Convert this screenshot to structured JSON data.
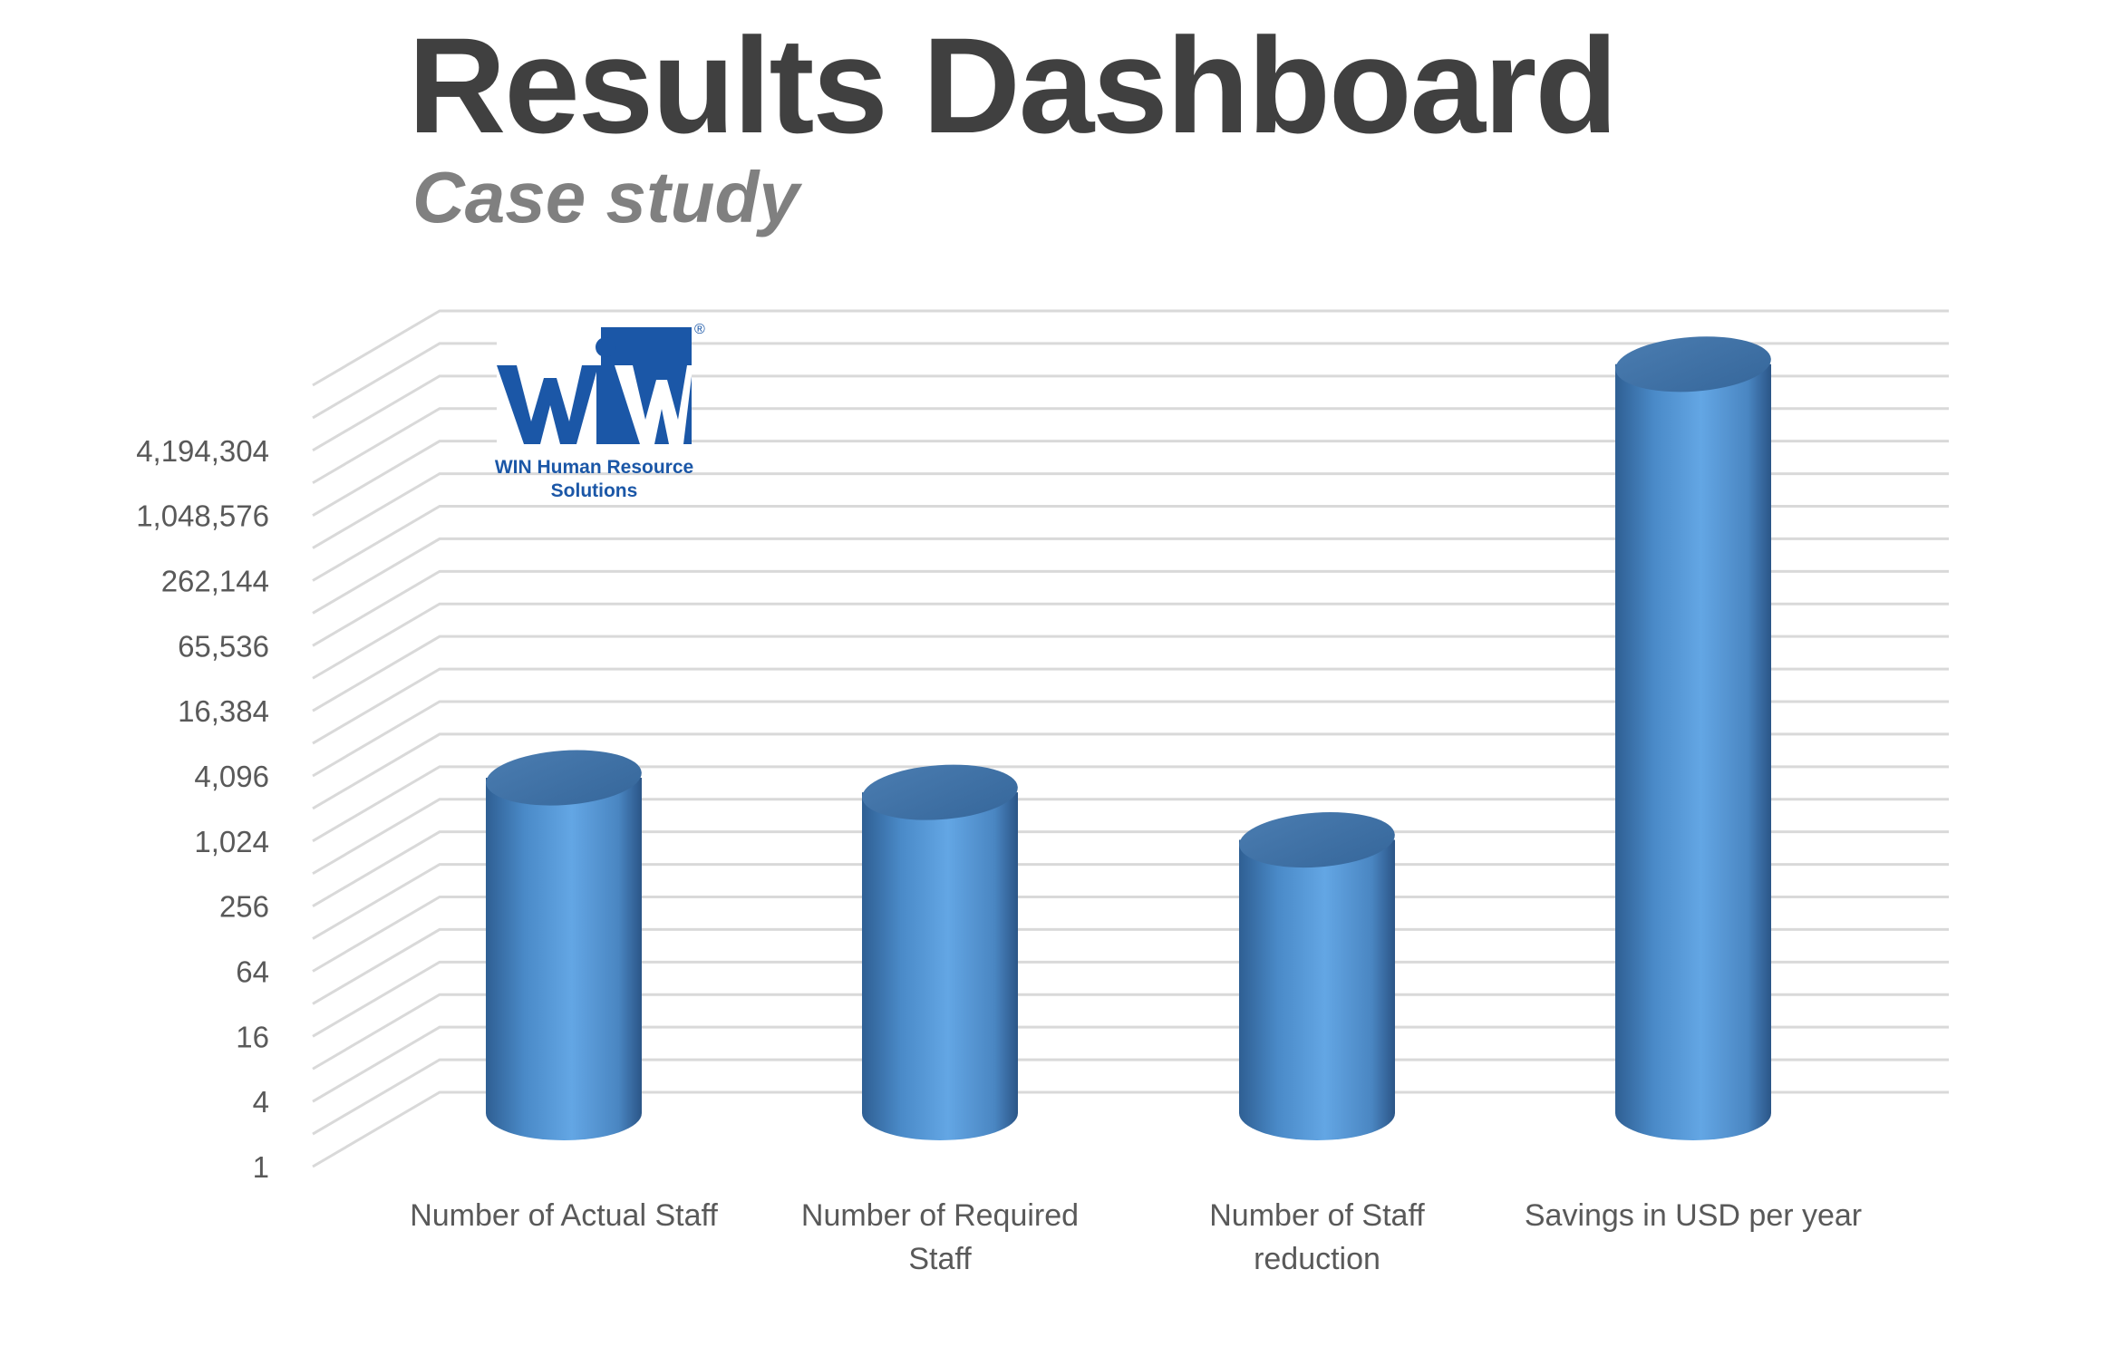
{
  "header": {
    "title": "Results Dashboard",
    "subtitle": "Case study"
  },
  "logo": {
    "mark_text": "WiW",
    "registered": "®",
    "company_line1": "WIN Human Resource",
    "company_line2": "Solutions",
    "color": "#1b57a7"
  },
  "chart_data": {
    "type": "bar",
    "style": "3d-cylinder",
    "scale": "log2",
    "categories": [
      [
        "Number of Actual Staff"
      ],
      [
        "Number of Required",
        "Staff"
      ],
      [
        "Number of Staff",
        "reduction"
      ],
      [
        "Savings in USD per year"
      ]
    ],
    "values": [
      1500,
      1100,
      400,
      10000000
    ],
    "ylim": [
      1,
      16777216
    ],
    "yticks": [
      "1",
      "4",
      "16",
      "64",
      "256",
      "1,024",
      "4,096",
      "16,384",
      "65,536",
      "262,144",
      "1,048,576",
      "4,194,304"
    ],
    "grid": true,
    "legend": "none",
    "bar_color": "#5b9bd5"
  }
}
